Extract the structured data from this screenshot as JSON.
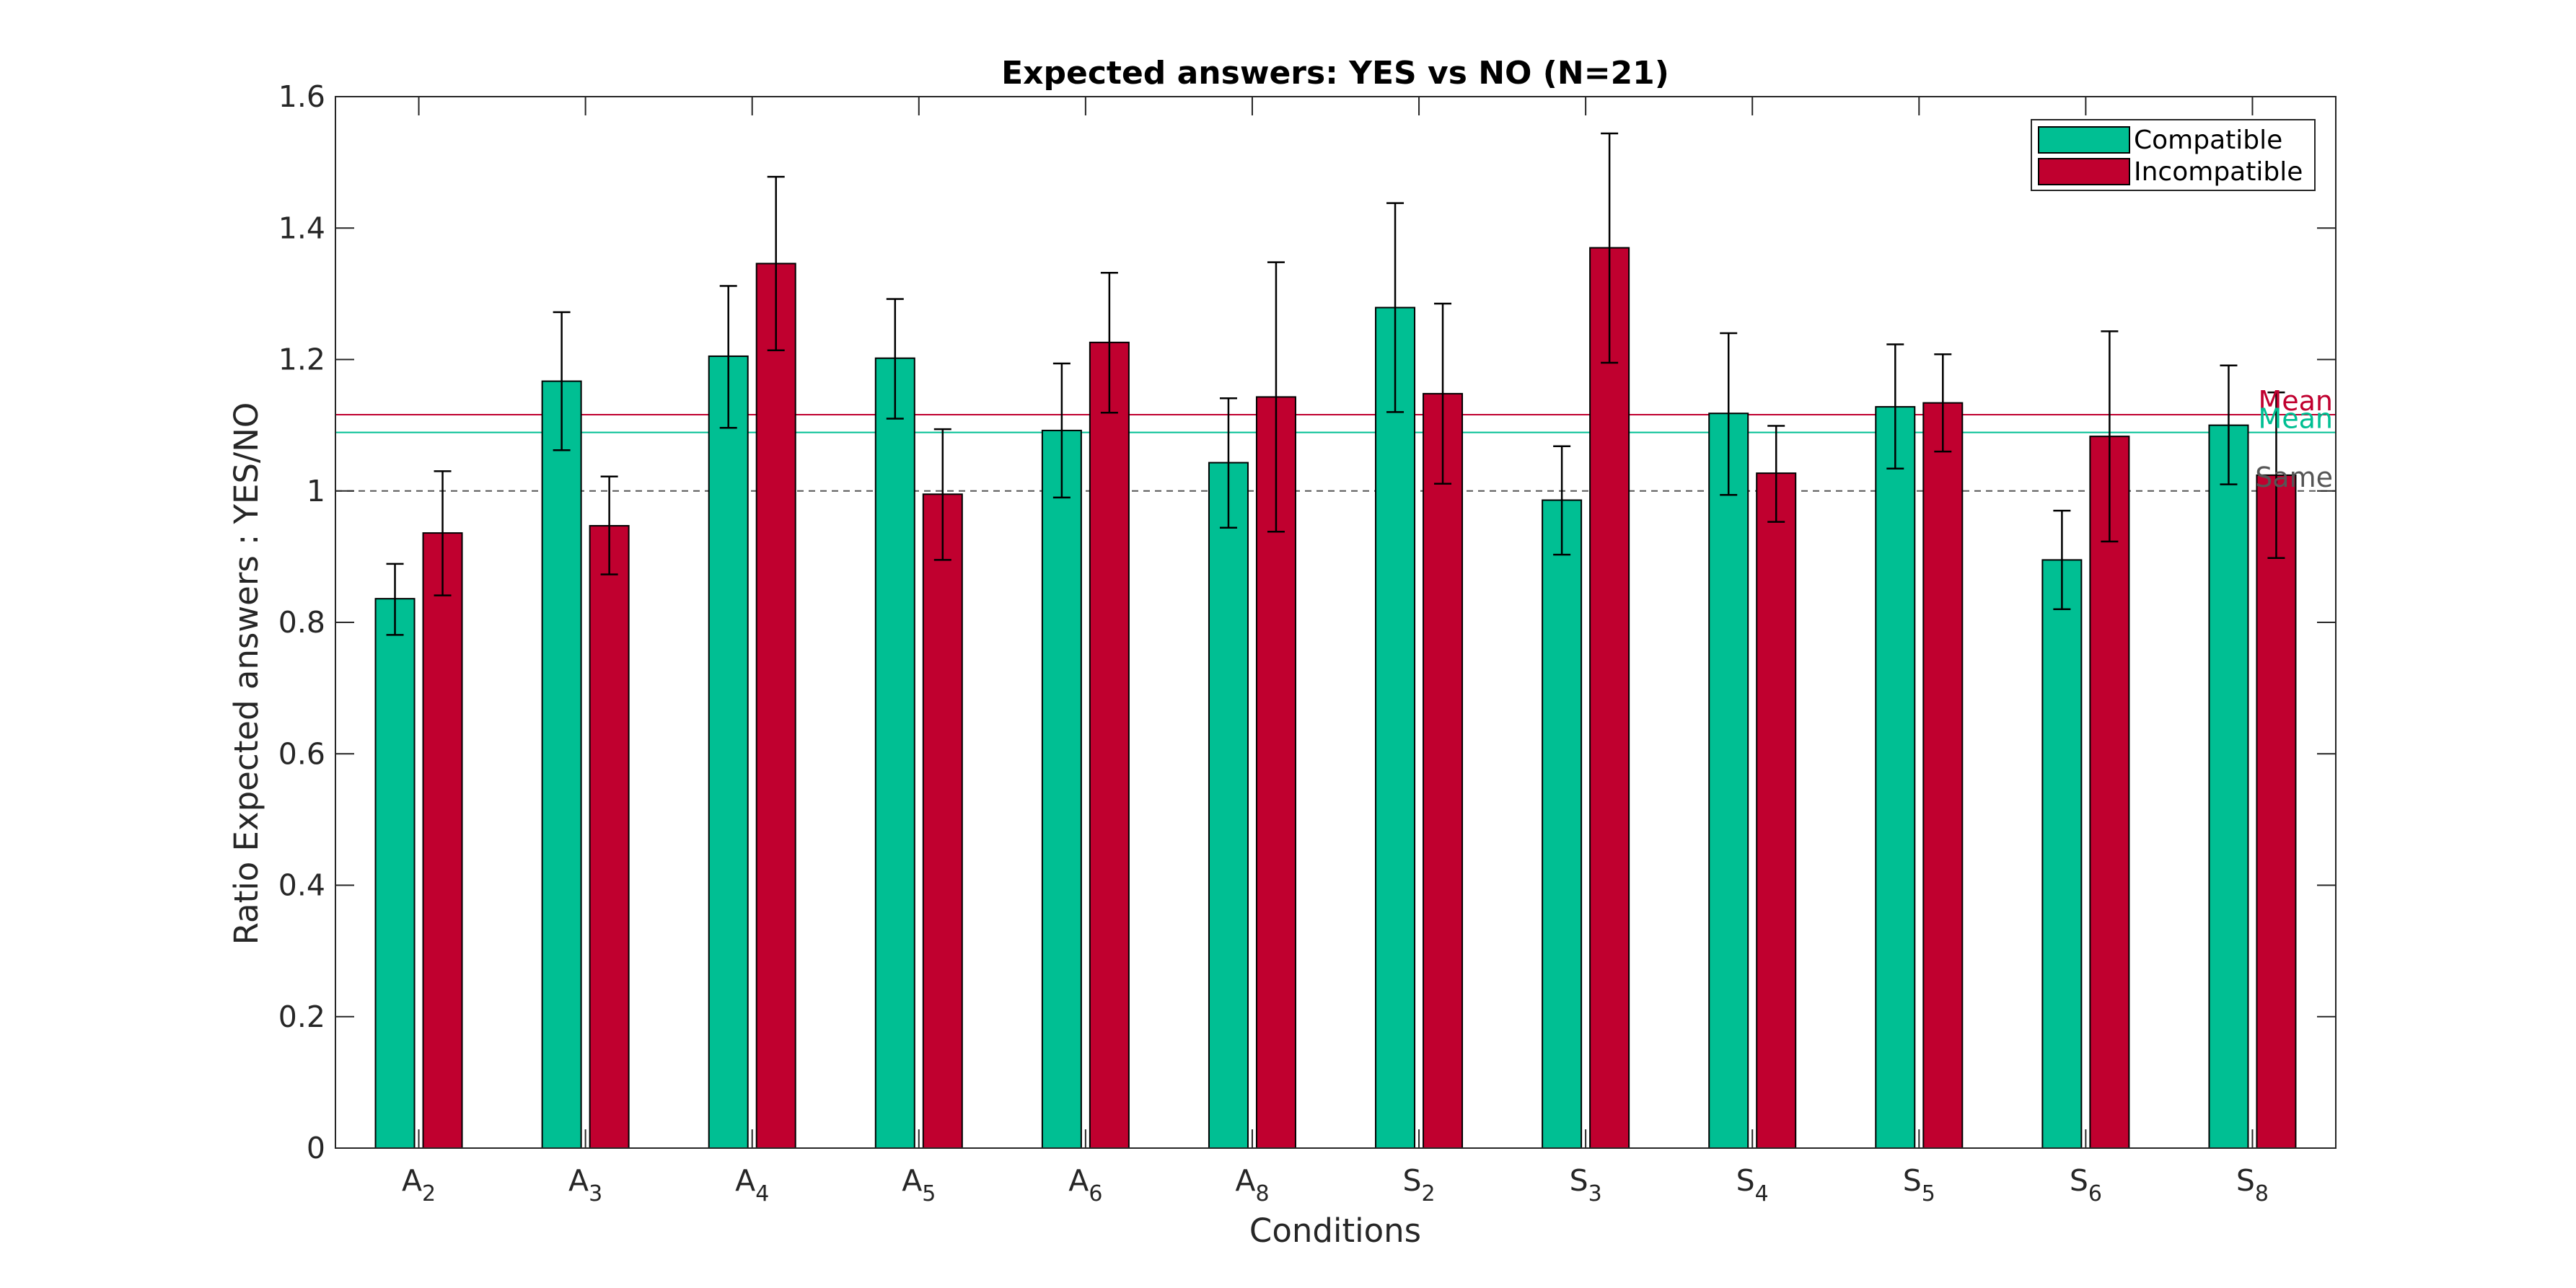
{
  "chart_data": {
    "type": "bar",
    "title": "Expected answers: YES vs NO (N=21)",
    "xlabel": "Conditions",
    "ylabel": "Ratio Expected answers : YES/NO",
    "ylim": [
      0,
      1.6
    ],
    "yticks": [
      "0",
      "0.2",
      "0.4",
      "0.6",
      "0.8",
      "1",
      "1.2",
      "1.4",
      "1.6"
    ],
    "categories": [
      {
        "base": "A",
        "sub": "2"
      },
      {
        "base": "A",
        "sub": "3"
      },
      {
        "base": "A",
        "sub": "4"
      },
      {
        "base": "A",
        "sub": "5"
      },
      {
        "base": "A",
        "sub": "6"
      },
      {
        "base": "A",
        "sub": "8"
      },
      {
        "base": "S",
        "sub": "2"
      },
      {
        "base": "S",
        "sub": "3"
      },
      {
        "base": "S",
        "sub": "4"
      },
      {
        "base": "S",
        "sub": "5"
      },
      {
        "base": "S",
        "sub": "6"
      },
      {
        "base": "S",
        "sub": "8"
      }
    ],
    "series": [
      {
        "name": "Compatible",
        "color": "#00bf93",
        "values": [
          0.836,
          1.167,
          1.205,
          1.202,
          1.092,
          1.043,
          1.279,
          0.986,
          1.118,
          1.128,
          0.895,
          1.1
        ],
        "err_low": [
          0.781,
          1.062,
          1.096,
          1.11,
          0.99,
          0.944,
          1.12,
          0.903,
          0.994,
          1.034,
          0.82,
          1.01
        ],
        "err_high": [
          0.889,
          1.272,
          1.312,
          1.292,
          1.194,
          1.141,
          1.438,
          1.068,
          1.24,
          1.223,
          0.97,
          1.191
        ]
      },
      {
        "name": "Incompatible",
        "color": "#c0002f",
        "values": [
          0.936,
          0.947,
          1.346,
          0.995,
          1.226,
          1.143,
          1.148,
          1.37,
          1.027,
          1.134,
          1.083,
          1.024
        ],
        "err_low": [
          0.841,
          0.873,
          1.214,
          0.895,
          1.119,
          0.938,
          1.011,
          1.195,
          0.953,
          1.06,
          0.923,
          0.898
        ],
        "err_high": [
          1.03,
          1.022,
          1.478,
          1.094,
          1.332,
          1.348,
          1.285,
          1.544,
          1.099,
          1.208,
          1.243,
          1.15
        ]
      }
    ],
    "reference_lines": [
      {
        "label": "Mean",
        "value": 1.116,
        "color": "#c0002f",
        "style": "solid"
      },
      {
        "label": "Mean",
        "value": 1.089,
        "color": "#00bf93",
        "style": "solid"
      },
      {
        "label": "Same",
        "value": 1.0,
        "color": "#555555",
        "style": "dashed"
      }
    ],
    "legend_position": "top-right",
    "grid": false
  }
}
